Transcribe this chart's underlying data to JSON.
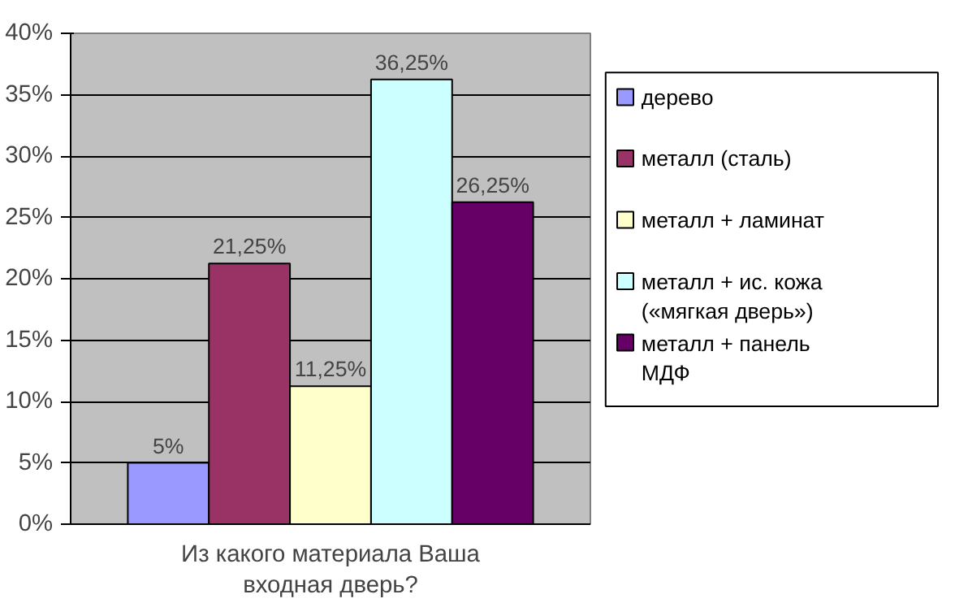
{
  "chart_data": {
    "type": "bar",
    "categories": [
      "Из какого материала Ваша входная дверь?"
    ],
    "series": [
      {
        "name": "дерево",
        "color": "#9999ff",
        "values": [
          5
        ],
        "value_labels": [
          "5%"
        ]
      },
      {
        "name": "металл (сталь)",
        "color": "#993366",
        "values": [
          21.25
        ],
        "value_labels": [
          "21,25%"
        ]
      },
      {
        "name": "металл + ламинат",
        "color": "#ffffcc",
        "values": [
          11.25
        ],
        "value_labels": [
          "11,25%"
        ]
      },
      {
        "name": "металл + ис. кожа («мягкая дверь»)",
        "color": "#ccffff",
        "values": [
          36.25
        ],
        "value_labels": [
          "36,25%"
        ]
      },
      {
        "name": "металл + панель МДФ",
        "color": "#660066",
        "values": [
          26.25
        ],
        "value_labels": [
          "26,25%"
        ]
      }
    ],
    "ylim": [
      0,
      40
    ],
    "yticks": [
      {
        "value": 0,
        "label": "0%"
      },
      {
        "value": 5,
        "label": "5%"
      },
      {
        "value": 10,
        "label": "10%"
      },
      {
        "value": 15,
        "label": "15%"
      },
      {
        "value": 20,
        "label": "20%"
      },
      {
        "value": 25,
        "label": "25%"
      },
      {
        "value": 30,
        "label": "30%"
      },
      {
        "value": 35,
        "label": "35%"
      },
      {
        "value": 40,
        "label": "40%"
      }
    ],
    "grid": "y",
    "legend": "right"
  }
}
